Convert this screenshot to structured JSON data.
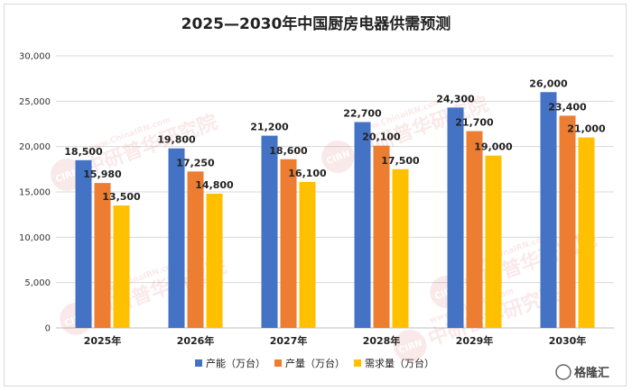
{
  "chart_data": {
    "type": "bar",
    "title": "2025—2030年中国厨房电器供需预测",
    "categories": [
      "2025年",
      "2026年",
      "2027年",
      "2028年",
      "2029年",
      "2030年"
    ],
    "series": [
      {
        "name": "产能（万台）",
        "color": "#4472C4",
        "values": [
          18500,
          19800,
          21200,
          22700,
          24300,
          26000
        ],
        "labels": [
          "18,500",
          "19,800",
          "21,200",
          "22,700",
          "24,300",
          "26,000"
        ]
      },
      {
        "name": "产量（万台）",
        "color": "#ED7D31",
        "values": [
          15980,
          17250,
          18600,
          20100,
          21700,
          23400
        ],
        "labels": [
          "15,980",
          "17,250",
          "18,600",
          "20,100",
          "21,700",
          "23,400"
        ]
      },
      {
        "name": "需求量（万台）",
        "color": "#FFC000",
        "values": [
          13500,
          14800,
          16100,
          17500,
          19000,
          21000
        ],
        "labels": [
          "13,500",
          "14,800",
          "16,100",
          "17,500",
          "19,000",
          "21,000"
        ]
      }
    ],
    "ylim": [
      0,
      30000
    ],
    "yticks": [
      "0",
      "5,000",
      "10,000",
      "15,000",
      "20,000",
      "25,000",
      "30,000"
    ],
    "grid": true,
    "legend": "bottom"
  },
  "watermark": {
    "text": "中研普华研究院",
    "url_text": "www.ChinaIRN.com",
    "badge": "CIRN"
  },
  "corner_logo": {
    "text": "格隆汇"
  }
}
